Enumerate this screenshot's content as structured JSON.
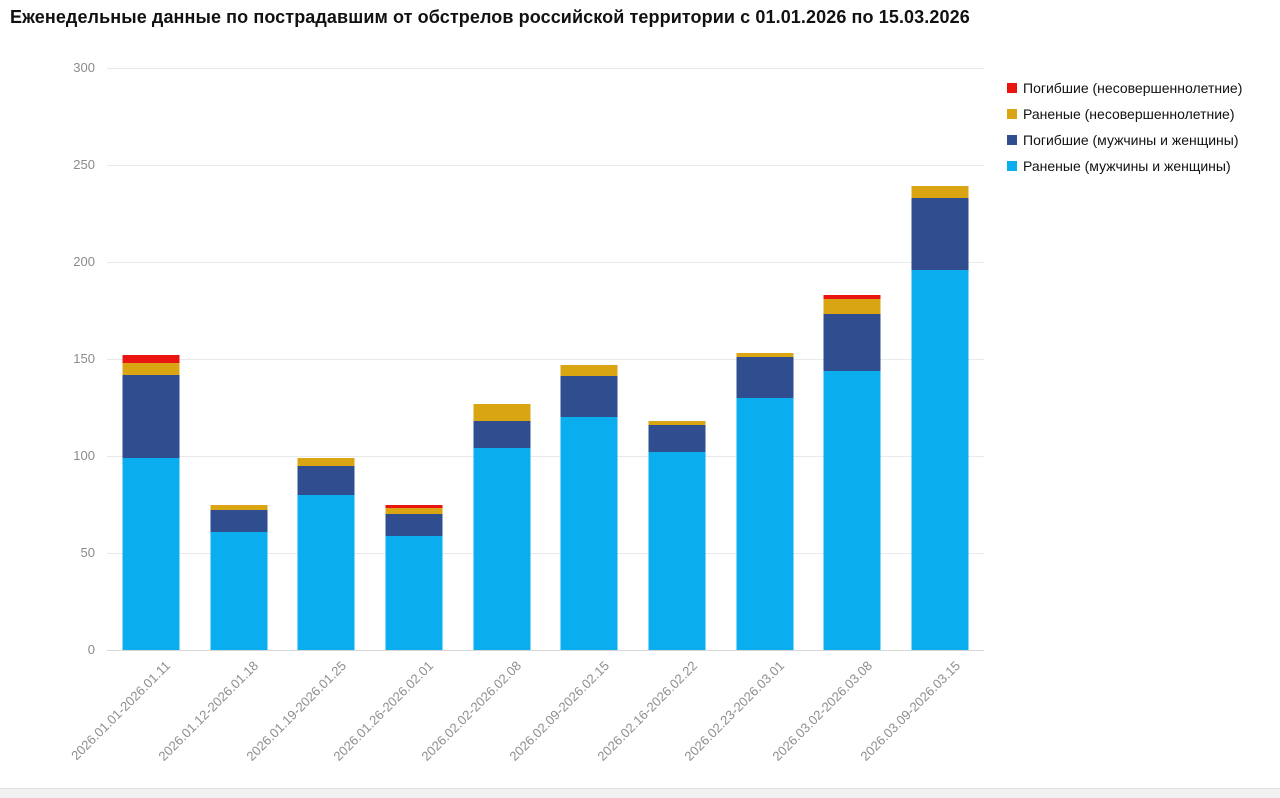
{
  "page": {
    "title": "Еженедельные данные по пострадавшим от обстрелов российской территории с 01.01.2026 по 15.03.2026"
  },
  "chart_data": {
    "type": "bar",
    "stacked": true,
    "title": "Еженедельные данные по пострадавшим от обстрелов российской территории с 01.01.2026 по 15.03.2026",
    "categories": [
      "2026.01.01-2026.01.11",
      "2026.01.12-2026.01.18",
      "2026.01.19-2026.01.25",
      "2026.01.26-2026.02.01",
      "2026.02.02-2026.02.08",
      "2026.02.09-2026.02.15",
      "2026.02.16-2026.02.22",
      "2026.02.23-2026.03.01",
      "2026.03.02-2026.03.08",
      "2026.03.09-2026.03.15"
    ],
    "series": [
      {
        "name": "Погибшие (несовершеннолетние)",
        "color": "#ea1410",
        "values": [
          4,
          0,
          0,
          2,
          0,
          0,
          0,
          0,
          2,
          0
        ]
      },
      {
        "name": "Раненые (несовершеннолетние)",
        "color": "#d9a513",
        "values": [
          6,
          3,
          4,
          3,
          9,
          6,
          2,
          2,
          8,
          6
        ]
      },
      {
        "name": "Погибшие (мужчины и женщины)",
        "color": "#2f4d8f",
        "values": [
          43,
          11,
          15,
          11,
          14,
          21,
          14,
          21,
          29,
          37
        ]
      },
      {
        "name": "Раненые (мужчины и женщины)",
        "color": "#0aaeee",
        "values": [
          99,
          61,
          80,
          59,
          104,
          120,
          102,
          130,
          144,
          196
        ]
      }
    ],
    "totals": [
      152,
      75,
      99,
      75,
      127,
      147,
      118,
      153,
      183,
      239
    ],
    "stack_order_bottom_to_top": [
      "Раненые (мужчины и женщины)",
      "Погибшие (мужчины и женщины)",
      "Раненые (несовершеннолетние)",
      "Погибшие (несовершеннолетние)"
    ],
    "ylim": [
      0,
      300
    ],
    "yticks": [
      0,
      50,
      100,
      150,
      200,
      250,
      300
    ],
    "grid": true,
    "legend_position": "top-right",
    "xlabel": "",
    "ylabel": ""
  }
}
